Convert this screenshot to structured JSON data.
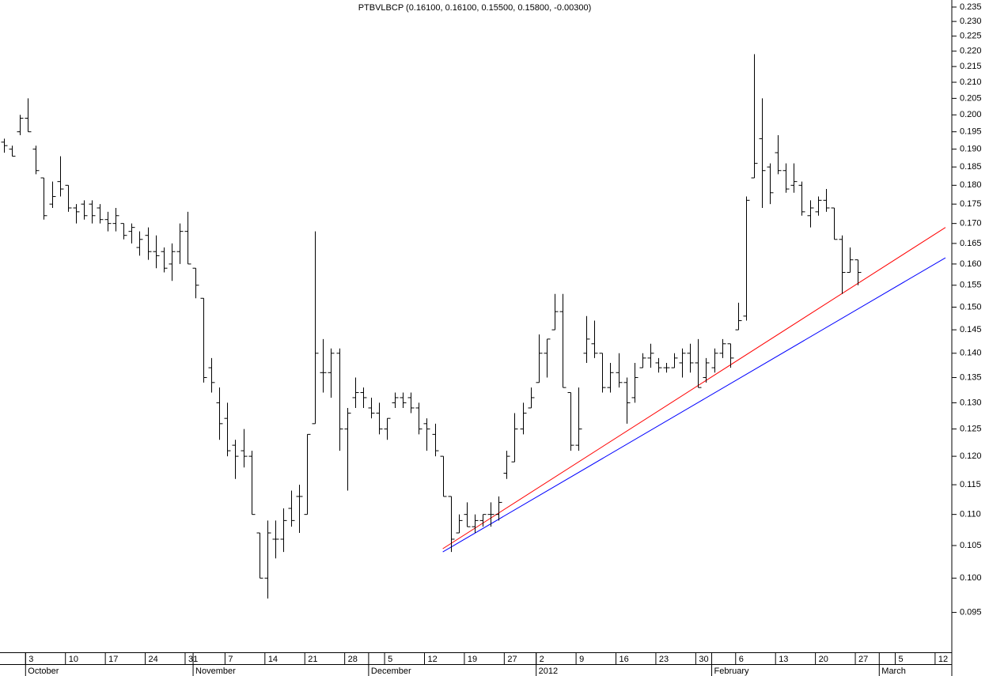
{
  "chart_data": {
    "type": "ohlc",
    "title": "PTBVLBCP (0.16100, 0.16100, 0.15500, 0.15800, -0.00300)",
    "log_scale": true,
    "color": "#000000",
    "ylim": [
      0.0895,
      0.2375
    ],
    "yticks": [
      0.095,
      {
        "value": 0.1,
        "label": "0.100"
      },
      0.105,
      {
        "value": 0.11,
        "label": "0.110"
      },
      0.115,
      {
        "value": 0.12,
        "label": "0.120"
      },
      0.125,
      {
        "value": 0.13,
        "label": "0.130"
      },
      0.135,
      {
        "value": 0.14,
        "label": "0.140"
      },
      0.145,
      {
        "value": 0.15,
        "label": "0.150"
      },
      0.155,
      {
        "value": 0.16,
        "label": "0.160"
      },
      0.165,
      {
        "value": 0.17,
        "label": "0.170"
      },
      0.175,
      {
        "value": 0.18,
        "label": "0.180"
      },
      0.185,
      {
        "value": 0.19,
        "label": "0.190"
      },
      0.195,
      {
        "value": 0.2,
        "label": "0.200"
      },
      0.205,
      {
        "value": 0.21,
        "label": "0.210"
      },
      0.215,
      {
        "value": 0.22,
        "label": "0.220"
      },
      0.225,
      {
        "value": 0.23,
        "label": "0.230"
      },
      0.235
    ],
    "categories": [
      null,
      null,
      null,
      "3",
      null,
      null,
      null,
      null,
      "10",
      null,
      null,
      null,
      null,
      "17",
      null,
      null,
      null,
      null,
      "24",
      null,
      null,
      null,
      null,
      "31",
      null,
      null,
      null,
      null,
      "7",
      null,
      null,
      null,
      null,
      "14",
      null,
      null,
      null,
      null,
      "21",
      null,
      null,
      null,
      null,
      "28",
      null,
      null,
      null,
      null,
      "5",
      null,
      null,
      null,
      null,
      "12",
      null,
      null,
      null,
      null,
      "19",
      null,
      null,
      null,
      null,
      "27",
      null,
      null,
      null,
      "2",
      null,
      null,
      null,
      null,
      "9",
      null,
      null,
      null,
      null,
      "16",
      null,
      null,
      null,
      null,
      "23",
      null,
      null,
      null,
      null,
      "30",
      null,
      null,
      null,
      null,
      "6",
      null,
      null,
      null,
      null,
      "13",
      null,
      null,
      null,
      null,
      "20",
      null,
      null,
      null,
      null,
      "27",
      null,
      null,
      null,
      null,
      "5",
      null,
      null,
      null,
      null,
      "12",
      null
    ],
    "months": [
      {
        "label": "October",
        "index": 3
      },
      {
        "label": "November",
        "index": 24
      },
      {
        "label": "December",
        "index": 46
      },
      {
        "label": "2012",
        "index": 67
      },
      {
        "label": "February",
        "index": 89
      },
      {
        "label": "March",
        "index": 110
      }
    ],
    "open": [
      0.192,
      0.19,
      0.195,
      0.199,
      0.19,
      0.182,
      0.175,
      0.181,
      0.18,
      0.174,
      0.175,
      0.175,
      0.174,
      0.171,
      0.17,
      0.17,
      0.168,
      0.164,
      0.167,
      0.163,
      0.163,
      0.16,
      0.163,
      0.168,
      0.159,
      0.152,
      0.137,
      0.13,
      0.127,
      0.122,
      0.121,
      0.12,
      0.107,
      0.1,
      0.106,
      0.106,
      0.111,
      0.113,
      0.11,
      0.126,
      0.136,
      0.136,
      0.14,
      0.125,
      0.131,
      0.132,
      0.129,
      0.128,
      0.125,
      0.13,
      0.131,
      0.131,
      0.129,
      0.126,
      0.124,
      0.12,
      0.113,
      0.107,
      0.11,
      0.108,
      0.109,
      0.11,
      0.11,
      0.117,
      0.119,
      0.125,
      0.129,
      0.134,
      0.14,
      0.145,
      0.149,
      0.132,
      0.122,
      0.14,
      0.142,
      0.14,
      0.133,
      0.136,
      0.134,
      0.131,
      0.137,
      0.139,
      0.138,
      0.137,
      0.137,
      0.138,
      0.14,
      0.138,
      0.135,
      0.137,
      0.14,
      0.142,
      0.145,
      0.148,
      0.182,
      0.193,
      0.185,
      0.189,
      0.184,
      0.18,
      0.18,
      0.172,
      0.173,
      0.176,
      0.174,
      0.166,
      0.158,
      0.161,
      null,
      null,
      null,
      null,
      null,
      null,
      null,
      null,
      null,
      null,
      null
    ],
    "high": [
      0.193,
      0.191,
      0.2,
      0.205,
      0.191,
      0.182,
      0.181,
      0.188,
      0.18,
      0.175,
      0.176,
      0.176,
      0.175,
      0.173,
      0.174,
      0.17,
      0.17,
      0.168,
      0.169,
      0.167,
      0.164,
      0.165,
      0.17,
      0.173,
      0.159,
      0.152,
      0.139,
      0.133,
      0.13,
      0.123,
      0.125,
      0.121,
      0.107,
      0.109,
      0.109,
      0.111,
      0.114,
      0.115,
      0.124,
      0.168,
      0.143,
      0.141,
      0.141,
      0.129,
      0.135,
      0.133,
      0.131,
      0.13,
      0.127,
      0.132,
      0.132,
      0.132,
      0.13,
      0.127,
      0.126,
      0.12,
      0.113,
      0.11,
      0.112,
      0.11,
      0.11,
      0.112,
      0.113,
      0.121,
      0.128,
      0.13,
      0.133,
      0.144,
      0.143,
      0.153,
      0.153,
      0.132,
      0.133,
      0.148,
      0.147,
      0.14,
      0.138,
      0.14,
      0.135,
      0.138,
      0.14,
      0.142,
      0.139,
      0.138,
      0.14,
      0.141,
      0.142,
      0.143,
      0.139,
      0.141,
      0.143,
      0.142,
      0.151,
      0.177,
      0.219,
      0.205,
      0.186,
      0.194,
      0.186,
      0.186,
      0.181,
      0.176,
      0.177,
      0.179,
      0.174,
      0.167,
      0.164,
      0.161,
      null,
      null,
      null,
      null,
      null,
      null,
      null,
      null,
      null,
      null,
      null
    ],
    "low": [
      0.189,
      0.188,
      0.194,
      0.195,
      0.183,
      0.171,
      0.174,
      0.177,
      0.173,
      0.17,
      0.171,
      0.17,
      0.17,
      0.168,
      0.168,
      0.166,
      0.165,
      0.162,
      0.161,
      0.159,
      0.158,
      0.156,
      0.16,
      0.16,
      0.152,
      0.134,
      0.132,
      0.123,
      0.12,
      0.116,
      0.118,
      0.11,
      0.1,
      0.097,
      0.103,
      0.104,
      0.108,
      0.107,
      0.11,
      0.126,
      0.132,
      0.131,
      0.121,
      0.114,
      0.129,
      0.129,
      0.127,
      0.124,
      0.123,
      0.129,
      0.129,
      0.128,
      0.124,
      0.121,
      0.12,
      0.113,
      0.104,
      0.107,
      0.108,
      0.107,
      0.108,
      0.108,
      0.109,
      0.116,
      0.119,
      0.124,
      0.129,
      0.134,
      0.135,
      0.145,
      0.133,
      0.121,
      0.121,
      0.138,
      0.139,
      0.132,
      0.132,
      0.133,
      0.126,
      0.13,
      0.137,
      0.137,
      0.136,
      0.136,
      0.137,
      0.135,
      0.136,
      0.133,
      0.134,
      0.136,
      0.139,
      0.137,
      0.145,
      0.147,
      0.182,
      0.174,
      0.175,
      0.183,
      0.178,
      0.178,
      0.172,
      0.169,
      0.172,
      0.173,
      0.166,
      0.153,
      0.158,
      0.155,
      null,
      null,
      null,
      null,
      null,
      null,
      null,
      null,
      null,
      null,
      null
    ],
    "close": [
      0.191,
      0.188,
      0.199,
      0.195,
      0.184,
      0.172,
      0.177,
      0.179,
      0.174,
      0.173,
      0.172,
      0.172,
      0.171,
      0.17,
      0.172,
      0.167,
      0.169,
      0.166,
      0.163,
      0.162,
      0.159,
      0.163,
      0.168,
      0.16,
      0.155,
      0.135,
      0.134,
      0.126,
      0.121,
      0.12,
      0.12,
      0.11,
      0.1,
      0.107,
      0.106,
      0.109,
      0.109,
      0.113,
      0.124,
      0.14,
      0.136,
      0.14,
      0.125,
      0.128,
      0.132,
      0.131,
      0.128,
      0.125,
      0.127,
      0.131,
      0.13,
      0.129,
      0.125,
      0.125,
      0.121,
      0.113,
      0.106,
      0.109,
      0.108,
      0.109,
      0.11,
      0.11,
      0.112,
      0.12,
      0.125,
      0.128,
      0.131,
      0.14,
      0.143,
      0.149,
      0.133,
      0.122,
      0.125,
      0.143,
      0.14,
      0.133,
      0.136,
      0.134,
      0.13,
      0.135,
      0.139,
      0.14,
      0.137,
      0.137,
      0.139,
      0.14,
      0.138,
      0.133,
      0.138,
      0.14,
      0.142,
      0.139,
      0.147,
      0.176,
      0.186,
      0.184,
      0.178,
      0.184,
      0.179,
      0.181,
      0.173,
      0.174,
      0.176,
      0.174,
      0.166,
      0.158,
      0.161,
      0.158,
      null,
      null,
      null,
      null,
      null,
      null,
      null,
      null,
      null,
      null,
      null
    ],
    "trendlines": [
      {
        "color": "#ff0000",
        "start": [
          55,
          0.1045
        ],
        "end": [
          118,
          0.169
        ]
      },
      {
        "color": "#0000ff",
        "start": [
          55,
          0.104
        ],
        "end": [
          118,
          0.1615
        ]
      }
    ]
  }
}
